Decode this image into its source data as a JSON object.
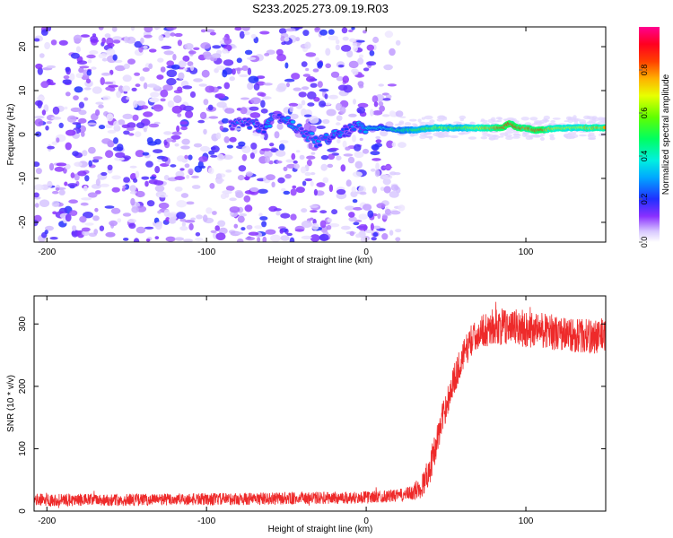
{
  "title": "S233.2025.273.09.19.R03",
  "chart_data": [
    {
      "type": "heatmap",
      "xlabel": "Height of straight line (km)",
      "ylabel": "Frequency (Hz)",
      "xlim": [
        -208,
        150
      ],
      "ylim": [
        -24.5,
        24.5
      ],
      "xticks": [
        -200,
        -100,
        0,
        100
      ],
      "yticks": [
        -20,
        -10,
        0,
        10,
        20
      ],
      "colorbar": {
        "label": "Normalized spectral amplitude",
        "range": [
          0,
          1
        ],
        "ticks": [
          0.0,
          0.2,
          0.4,
          0.6,
          0.8
        ],
        "colors": [
          "#ffffff",
          "#c9b3ff",
          "#7a00ff",
          "#2040ff",
          "#00c8ff",
          "#00ff80",
          "#a0ff00",
          "#ffee00",
          "#ff8000",
          "#ff0000",
          "#ff0080"
        ]
      },
      "noise_region_x": [
        -208,
        25
      ],
      "ridge": {
        "x": [
          -85,
          -75,
          -65,
          -58,
          -50,
          -45,
          -40,
          -35,
          -30,
          -25,
          -20,
          -15,
          -10,
          -5,
          0,
          10,
          20,
          30,
          40,
          50,
          60,
          70,
          80,
          85,
          90,
          95,
          100,
          105,
          110,
          120,
          130,
          140,
          150
        ],
        "freq": [
          2,
          3,
          1,
          4,
          3,
          2,
          0.5,
          -0.5,
          -2,
          -1,
          0,
          0.5,
          1,
          2,
          1.5,
          1.5,
          1,
          1,
          1.5,
          1.5,
          1.5,
          1.5,
          1.5,
          1.5,
          2.5,
          1.5,
          1.5,
          1,
          1,
          1.5,
          1.5,
          1.5,
          1.5
        ],
        "amplitude": [
          0.25,
          0.3,
          0.3,
          0.3,
          0.3,
          0.32,
          0.3,
          0.3,
          0.3,
          0.3,
          0.35,
          0.3,
          0.3,
          0.35,
          0.4,
          0.4,
          0.45,
          0.55,
          0.6,
          0.65,
          0.6,
          0.7,
          0.8,
          0.85,
          0.9,
          0.9,
          0.85,
          0.85,
          0.85,
          0.7,
          0.7,
          0.75,
          0.75
        ]
      }
    },
    {
      "type": "line",
      "xlabel": "Height of straight line (km)",
      "ylabel": "SNR (10 * v/v)",
      "xlim": [
        -208,
        150
      ],
      "ylim": [
        0,
        345
      ],
      "xticks": [
        -200,
        -100,
        0,
        100
      ],
      "yticks": [
        0,
        100,
        200,
        300
      ],
      "color": "#ee2a2a",
      "x": [
        -208,
        -150,
        -100,
        -50,
        0,
        20,
        28,
        35,
        40,
        45,
        50,
        55,
        60,
        65,
        70,
        75,
        80,
        90,
        100,
        110,
        120,
        130,
        140,
        150
      ],
      "y": [
        18,
        18,
        19,
        20,
        22,
        25,
        28,
        40,
        70,
        120,
        170,
        210,
        245,
        270,
        285,
        292,
        295,
        295,
        292,
        290,
        285,
        282,
        280,
        280
      ],
      "noise_amplitude": [
        10,
        10,
        10,
        10,
        10,
        10,
        12,
        20,
        25,
        25,
        25,
        25,
        25,
        25,
        25,
        28,
        30,
        30,
        30,
        28,
        28,
        28,
        28,
        28
      ]
    }
  ]
}
